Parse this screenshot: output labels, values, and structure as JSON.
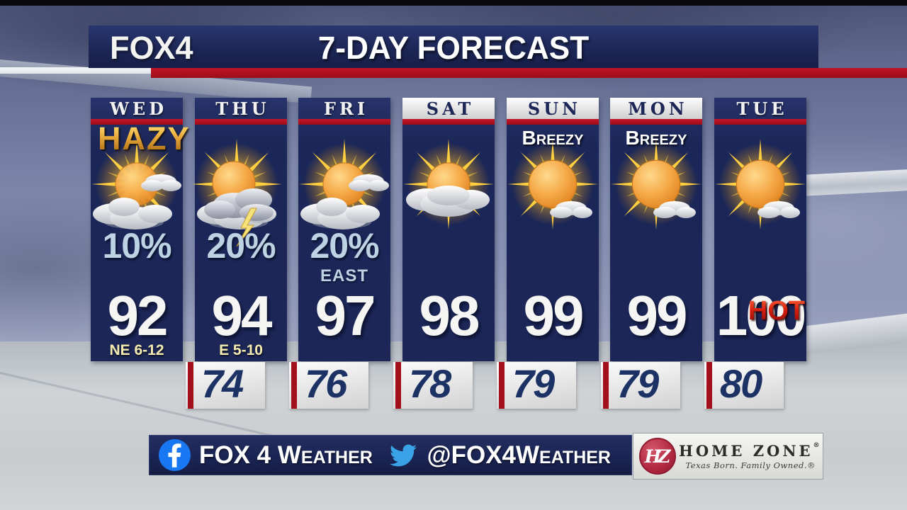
{
  "header": {
    "logo": "FOX4",
    "title": "7-DAY FORECAST"
  },
  "days": [
    {
      "name": "WED",
      "header_style": "navy",
      "condition": "",
      "badge": "HAZY",
      "badge_style": "hazy",
      "icon": "hazy-sun-clouds-icon",
      "icon_variant": "hazy",
      "pop": "10%",
      "pop_detail": "",
      "high": "92",
      "wind": "NE 6-12"
    },
    {
      "name": "THU",
      "header_style": "navy",
      "condition": "",
      "badge": "",
      "badge_style": "",
      "icon": "sun-thunderstorm-icon",
      "icon_variant": "storm",
      "pop": "20%",
      "pop_detail": "",
      "high": "94",
      "wind": "E 5-10"
    },
    {
      "name": "FRI",
      "header_style": "navy",
      "condition": "",
      "badge": "",
      "badge_style": "",
      "icon": "sun-clouds-icon",
      "icon_variant": "cloudy",
      "pop": "20%",
      "pop_detail": "EAST",
      "high": "97",
      "wind": ""
    },
    {
      "name": "SAT",
      "header_style": "light",
      "condition": "",
      "badge": "",
      "badge_style": "",
      "icon": "sun-cloud-icon",
      "icon_variant": "widecloud",
      "pop": "",
      "pop_detail": "",
      "high": "98",
      "wind": ""
    },
    {
      "name": "SUN",
      "header_style": "light",
      "condition": "Breezy",
      "badge": "",
      "badge_style": "",
      "icon": "sunny-small-cloud-icon",
      "icon_variant": "sunny",
      "pop": "",
      "pop_detail": "",
      "high": "99",
      "wind": ""
    },
    {
      "name": "MON",
      "header_style": "light",
      "condition": "Breezy",
      "badge": "",
      "badge_style": "",
      "icon": "sunny-small-cloud-icon",
      "icon_variant": "sunny",
      "pop": "",
      "pop_detail": "",
      "high": "99",
      "wind": ""
    },
    {
      "name": "TUE",
      "header_style": "navy",
      "condition": "",
      "badge": "HOT",
      "badge_style": "hot",
      "icon": "sunny-small-cloud-icon",
      "icon_variant": "sunny",
      "pop": "",
      "pop_detail": "",
      "high": "100",
      "wind": ""
    }
  ],
  "lows": [
    "74",
    "76",
    "78",
    "79",
    "79",
    "80"
  ],
  "footer": {
    "facebook_label": "FOX 4 Weather",
    "twitter_handle": "@FOX4Weather",
    "sponsor": {
      "abbr": "HZ",
      "name": "HOME ZONE",
      "mark": "®",
      "tagline": "Texas Born. Family Owned.®"
    }
  },
  "colors": {
    "navy": "#1c2657",
    "red": "#b30d1e",
    "pop_blue": "#bdd2e2",
    "wind_yellow": "#f4ecb0",
    "low_navy": "#1c3265",
    "facebook_blue": "#1877f2",
    "twitter_blue": "#3aa2e6",
    "sponsor_red": "#ae2438"
  }
}
